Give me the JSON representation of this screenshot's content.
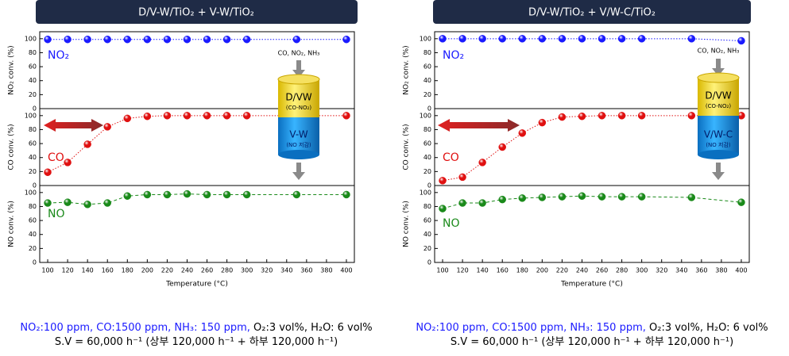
{
  "panels": [
    {
      "title": "D/V-W/TiO₂ + V-W/TiO₂",
      "diagram": {
        "inlet": "CO, NO₂, NH₃",
        "upper": "D/VW",
        "upper_note": "(CO-NO₂)",
        "lower": "V-W",
        "lower_note": "(NO 저감)"
      },
      "caption": [
        [
          {
            "text": "NO₂:100 ppm, CO:1500 ppm, NH₃: 150 ppm,",
            "color": "#1a1aff"
          },
          {
            "text": " O₂:3 vol%, H₂O: 6 vol%",
            "color": "#000000"
          }
        ],
        [
          {
            "text": "S.V = 60,000 h⁻¹ (상부 120,000 h⁻¹ + 하부 120,000 h⁻¹)",
            "color": "#000000"
          }
        ]
      ]
    },
    {
      "title": "D/V-W/TiO₂ + V/W-C/TiO₂",
      "diagram": {
        "inlet": "CO, NO₂, NH₃",
        "upper": "D/VW",
        "upper_note": "(CO-NO₂)",
        "lower": "V/W-C",
        "lower_note": "(NO 저감)"
      },
      "caption": [
        [
          {
            "text": "NO₂:100 ppm, CO:1500 ppm, NH₃: 150 ppm,",
            "color": "#1a1aff"
          },
          {
            "text": " O₂:3 vol%, H₂O: 6 vol%",
            "color": "#000000"
          }
        ],
        [
          {
            "text": "S.V = 60,000 h⁻¹ (상부 120,000 h⁻¹ + 하부 120,000 h⁻¹)",
            "color": "#000000"
          }
        ]
      ]
    }
  ],
  "chart_data": [
    {
      "type": "line",
      "ylabel": "NO₂ conv. (%)",
      "x": [
        100,
        120,
        140,
        160,
        180,
        200,
        220,
        240,
        260,
        280,
        300,
        350,
        400
      ],
      "xlim": [
        92,
        408
      ],
      "ylim": [
        0,
        110
      ],
      "yticks": [
        0,
        20,
        40,
        60,
        80,
        100
      ],
      "line_style": "dotted",
      "series": [
        {
          "name": "NO₂",
          "color": "#1a1aff",
          "values": [
            99,
            99,
            99,
            99,
            99,
            99,
            99,
            99,
            99,
            99,
            99,
            99,
            99
          ]
        }
      ]
    },
    {
      "type": "line",
      "ylabel": "CO conv. (%)",
      "x": [
        100,
        120,
        140,
        160,
        180,
        200,
        220,
        240,
        260,
        280,
        300,
        350,
        400
      ],
      "xlim": [
        92,
        408
      ],
      "ylim": [
        0,
        110
      ],
      "yticks": [
        0,
        20,
        40,
        60,
        80,
        100
      ],
      "line_style": "dotted",
      "series": [
        {
          "name": "CO",
          "color": "#e01010",
          "values": [
            19,
            33,
            59,
            84,
            96,
            99,
            100,
            100,
            100,
            100,
            100,
            100,
            100
          ]
        }
      ]
    },
    {
      "type": "line",
      "ylabel": "NO conv. (%)",
      "x": [
        100,
        120,
        140,
        160,
        180,
        200,
        220,
        240,
        260,
        280,
        300,
        350,
        400
      ],
      "xlim": [
        92,
        408
      ],
      "ylim": [
        0,
        110
      ],
      "yticks": [
        0,
        20,
        40,
        60,
        80,
        100
      ],
      "line_style": "dashed",
      "xlabel": "Temperature (°C)",
      "xticks": [
        100,
        120,
        140,
        160,
        180,
        200,
        220,
        240,
        260,
        280,
        300,
        320,
        340,
        360,
        380,
        400
      ],
      "series": [
        {
          "name": "NO",
          "color": "#1a8a1a",
          "values": [
            85,
            86,
            83,
            85,
            95,
            97,
            97,
            98,
            97,
            97,
            97,
            97,
            97
          ]
        }
      ]
    },
    {
      "type": "line",
      "ylabel": "NO₂ conv. (%)",
      "x": [
        100,
        120,
        140,
        160,
        180,
        200,
        220,
        240,
        260,
        280,
        300,
        350,
        400
      ],
      "xlim": [
        92,
        408
      ],
      "ylim": [
        0,
        110
      ],
      "yticks": [
        0,
        20,
        40,
        60,
        80,
        100
      ],
      "line_style": "dotted",
      "series": [
        {
          "name": "NO₂",
          "color": "#1a1aff",
          "values": [
            100,
            100,
            100,
            100,
            100,
            100,
            100,
            100,
            100,
            100,
            100,
            100,
            97
          ]
        }
      ]
    },
    {
      "type": "line",
      "ylabel": "CO conv. (%)",
      "x": [
        100,
        120,
        140,
        160,
        180,
        200,
        220,
        240,
        260,
        280,
        300,
        350,
        400
      ],
      "xlim": [
        92,
        408
      ],
      "ylim": [
        0,
        110
      ],
      "yticks": [
        0,
        20,
        40,
        60,
        80,
        100
      ],
      "line_style": "dotted",
      "series": [
        {
          "name": "CO",
          "color": "#e01010",
          "values": [
            7,
            12,
            33,
            55,
            75,
            90,
            98,
            99,
            100,
            100,
            100,
            100,
            100
          ]
        }
      ]
    },
    {
      "type": "line",
      "ylabel": "NO conv. (%)",
      "x": [
        100,
        120,
        140,
        160,
        180,
        200,
        220,
        240,
        260,
        280,
        300,
        350,
        400
      ],
      "xlim": [
        92,
        408
      ],
      "ylim": [
        0,
        110
      ],
      "yticks": [
        0,
        20,
        40,
        60,
        80,
        100
      ],
      "line_style": "dashed",
      "xlabel": "Temperature (°C)",
      "xticks": [
        100,
        120,
        140,
        160,
        180,
        200,
        220,
        240,
        260,
        280,
        300,
        320,
        340,
        360,
        380,
        400
      ],
      "series": [
        {
          "name": "NO",
          "color": "#1a8a1a",
          "values": [
            77,
            85,
            85,
            90,
            92,
            93,
            94,
            95,
            94,
            94,
            94,
            93,
            86
          ]
        }
      ]
    }
  ]
}
